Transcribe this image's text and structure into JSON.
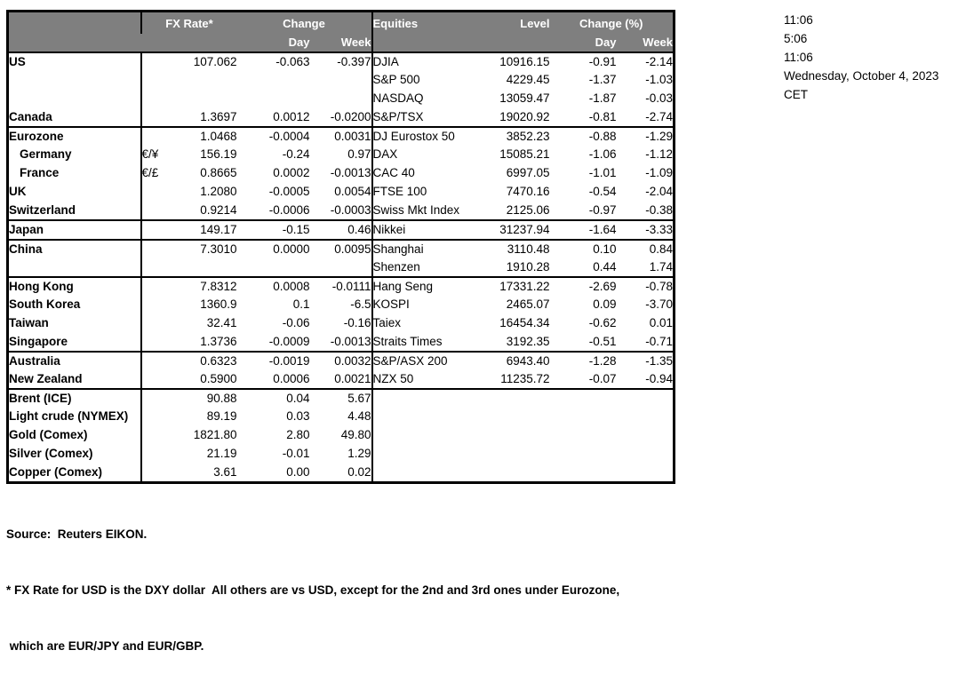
{
  "colors": {
    "header_bg": "#7f7f7f",
    "header_text": "#ffffff",
    "border": "#000000"
  },
  "clock": {
    "times": [
      "11:06",
      "5:06",
      "11:06"
    ],
    "date": "Wednesday, October 4, 2023",
    "timezone": "CET"
  },
  "table": {
    "header": {
      "fx_rate": "FX Rate*",
      "change": "Change",
      "fx_day": "Day",
      "fx_week": "Week",
      "equities": "Equities",
      "level": "Level",
      "change_pct": "Change (%)",
      "eq_day": "Day",
      "eq_week": "Week"
    },
    "rows": [
      {
        "name": "US",
        "pair": "",
        "rate": "107.062",
        "fxday": "-0.063",
        "fxweek": "-0.397",
        "eq": "DJIA",
        "level": "10916.15",
        "eqday": "-0.91",
        "eqweek": "-2.14"
      },
      {
        "name": "",
        "pair": "",
        "rate": "",
        "fxday": "",
        "fxweek": "",
        "eq": "S&P 500",
        "level": "4229.45",
        "eqday": "-1.37",
        "eqweek": "-1.03"
      },
      {
        "name": "",
        "pair": "",
        "rate": "",
        "fxday": "",
        "fxweek": "",
        "eq": "NASDAQ",
        "level": "13059.47",
        "eqday": "-1.87",
        "eqweek": "-0.03"
      },
      {
        "name": "Canada",
        "pair": "",
        "rate": "1.3697",
        "fxday": "0.0012",
        "fxweek": "-0.0200",
        "eq": "S&P/TSX",
        "level": "19020.92",
        "eqday": "-0.81",
        "eqweek": "-2.74"
      },
      {
        "top": true,
        "name": "Eurozone",
        "pair": "",
        "rate": "1.0468",
        "fxday": "-0.0004",
        "fxweek": "0.0031",
        "eq": "DJ Eurostox 50",
        "level": "3852.23",
        "eqday": "-0.88",
        "eqweek": "-1.29"
      },
      {
        "name": "Germany",
        "indent": true,
        "pair": "€/¥",
        "rate": "156.19",
        "fxday": "-0.24",
        "fxweek": "0.97",
        "eq": "DAX",
        "level": "15085.21",
        "eqday": "-1.06",
        "eqweek": "-1.12"
      },
      {
        "name": "France",
        "indent": true,
        "pair": "€/£",
        "rate": "0.8665",
        "fxday": "0.0002",
        "fxweek": "-0.0013",
        "eq": "CAC 40",
        "level": "6997.05",
        "eqday": "-1.01",
        "eqweek": "-1.09"
      },
      {
        "name": "UK",
        "pair": "",
        "rate": "1.2080",
        "fxday": "-0.0005",
        "fxweek": "0.0054",
        "eq": "FTSE 100",
        "level": "7470.16",
        "eqday": "-0.54",
        "eqweek": "-2.04"
      },
      {
        "name": "Switzerland",
        "pair": "",
        "rate": "0.9214",
        "fxday": "-0.0006",
        "fxweek": "-0.0003",
        "eq": "Swiss Mkt Index",
        "level": "2125.06",
        "eqday": "-0.97",
        "eqweek": "-0.38"
      },
      {
        "top": true,
        "name": "Japan",
        "pair": "",
        "rate": "149.17",
        "fxday": "-0.15",
        "fxweek": "0.46",
        "eq": "Nikkei",
        "level": "31237.94",
        "eqday": "-1.64",
        "eqweek": "-3.33"
      },
      {
        "top": true,
        "name": "China",
        "pair": "",
        "rate": "7.3010",
        "fxday": "0.0000",
        "fxweek": "0.0095",
        "eq": "Shanghai",
        "level": "3110.48",
        "eqday": "0.10",
        "eqweek": "0.84"
      },
      {
        "name": "",
        "pair": "",
        "rate": "",
        "fxday": "",
        "fxweek": "",
        "eq": "Shenzen",
        "level": "1910.28",
        "eqday": "0.44",
        "eqweek": "1.74"
      },
      {
        "top": true,
        "name": "Hong Kong",
        "pair": "",
        "rate": "7.8312",
        "fxday": "0.0008",
        "fxweek": "-0.0111",
        "eq": "Hang Seng",
        "level": "17331.22",
        "eqday": "-2.69",
        "eqweek": "-0.78"
      },
      {
        "name": "South Korea",
        "pair": "",
        "rate": "1360.9",
        "fxday": "0.1",
        "fxweek": "-6.5",
        "eq": "KOSPI",
        "level": "2465.07",
        "eqday": "0.09",
        "eqweek": "-3.70"
      },
      {
        "name": "Taiwan",
        "pair": "",
        "rate": "32.41",
        "fxday": "-0.06",
        "fxweek": "-0.16",
        "eq": "Taiex",
        "level": "16454.34",
        "eqday": "-0.62",
        "eqweek": "0.01"
      },
      {
        "name": "Singapore",
        "pair": "",
        "rate": "1.3736",
        "fxday": "-0.0009",
        "fxweek": "-0.0013",
        "eq": "Straits Times",
        "level": "3192.35",
        "eqday": "-0.51",
        "eqweek": "-0.71"
      },
      {
        "top": true,
        "name": "Australia",
        "pair": "",
        "rate": "0.6323",
        "fxday": "-0.0019",
        "fxweek": "0.0032",
        "eq": "S&P/ASX  200",
        "level": "6943.40",
        "eqday": "-1.28",
        "eqweek": "-1.35"
      },
      {
        "name": "New Zealand",
        "pair": "",
        "rate": "0.5900",
        "fxday": "0.0006",
        "fxweek": "0.0021",
        "eq": "NZX 50",
        "level": "11235.72",
        "eqday": "-0.07",
        "eqweek": "-0.94"
      },
      {
        "top": true,
        "name": "Brent (ICE)",
        "pair": "",
        "rate": "90.88",
        "fxday": "0.04",
        "fxweek": "5.67",
        "eq": "",
        "level": "",
        "eqday": "",
        "eqweek": ""
      },
      {
        "name": "Light crude (NYMEX)",
        "pair": "",
        "rate": "89.19",
        "fxday": "0.03",
        "fxweek": "4.48",
        "eq": "",
        "level": "",
        "eqday": "",
        "eqweek": ""
      },
      {
        "name": "Gold (Comex)",
        "pair": "",
        "rate": "1821.80",
        "fxday": "2.80",
        "fxweek": "49.80",
        "eq": "",
        "level": "",
        "eqday": "",
        "eqweek": ""
      },
      {
        "name": "Silver (Comex)",
        "pair": "",
        "rate": "21.19",
        "fxday": "-0.01",
        "fxweek": "1.29",
        "eq": "",
        "level": "",
        "eqday": "",
        "eqweek": ""
      },
      {
        "name": "Copper (Comex)",
        "pair": "",
        "rate": "3.61",
        "fxday": "0.00",
        "fxweek": "0.02",
        "eq": "",
        "level": "",
        "eqday": "",
        "eqweek": ""
      }
    ]
  },
  "footnotes": {
    "source": "Source:  Reuters EIKON.",
    "note1": "* FX Rate for USD is the DXY dollar  All others are vs USD, except for the 2nd and 3rd ones under Eurozone,",
    "note2": " which are EUR/JPY and EUR/GBP."
  }
}
